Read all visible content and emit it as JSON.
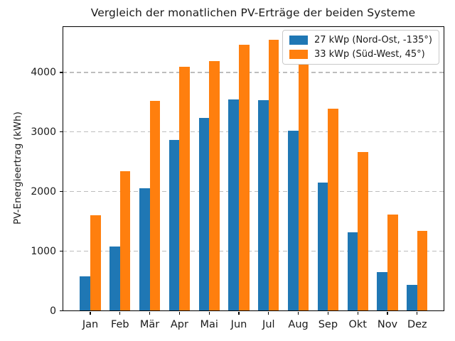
{
  "chart_data": {
    "type": "bar",
    "title": "Vergleich der monatlichen PV-Erträge der beiden Systeme",
    "xlabel": "",
    "ylabel": "PV-Energieertrag (kWh)",
    "categories": [
      "Jan",
      "Feb",
      "Mär",
      "Apr",
      "Mai",
      "Jun",
      "Jul",
      "Aug",
      "Sep",
      "Okt",
      "Nov",
      "Dez"
    ],
    "series": [
      {
        "name": "27 kWp (Nord-Ost, -135°)",
        "color": "#1f77b4",
        "values": [
          580,
          1080,
          2060,
          2870,
          3240,
          3550,
          3530,
          3020,
          2150,
          1320,
          650,
          430
        ]
      },
      {
        "name": "33 kWp (Süd-West, 45°)",
        "color": "#ff7f0e",
        "values": [
          1600,
          2340,
          3520,
          4090,
          4190,
          4460,
          4550,
          4140,
          3390,
          2670,
          1620,
          1340
        ]
      }
    ],
    "yticks": [
      0,
      1000,
      2000,
      3000,
      4000
    ],
    "ylim": [
      0,
      4780
    ],
    "grid": "horizontal-dashed",
    "legend_position": "upper-right",
    "spine_color": "#000000",
    "grid_color": "#bdbdbd",
    "background": "#ffffff"
  }
}
